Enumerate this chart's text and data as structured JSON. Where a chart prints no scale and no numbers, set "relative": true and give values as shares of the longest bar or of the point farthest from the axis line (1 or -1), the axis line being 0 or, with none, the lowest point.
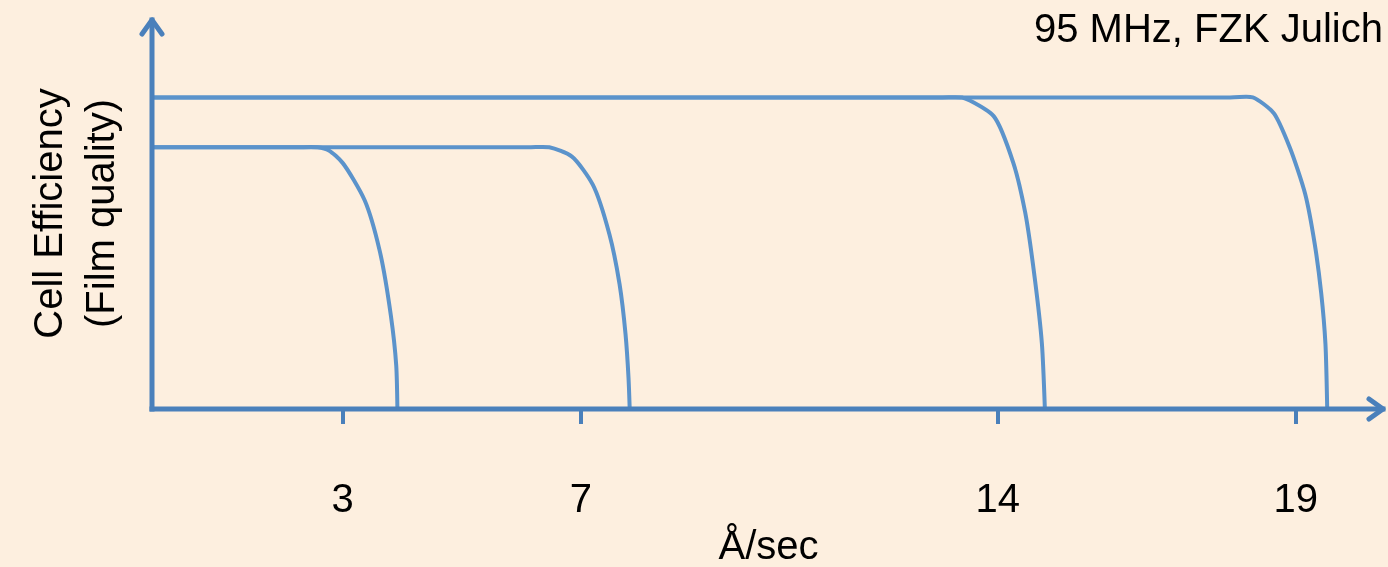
{
  "chart_data": {
    "type": "line",
    "relative": true,
    "xlabel": "Å/sec",
    "ylabel": "Cell Efficiency\n(Film quality)",
    "annotations": [
      "95 MHz, FZK Julich"
    ],
    "xlim": [
      -0.2,
      20.5
    ],
    "xticks": [
      3,
      7,
      14,
      19
    ],
    "series": [
      {
        "color": "#5b93cb",
        "x": [
          -0.2,
          2.2,
          2.58,
          2.77,
          3.0,
          3.37,
          3.62,
          3.81,
          3.9,
          3.92
        ],
        "values": [
          0.84,
          0.84,
          0.84,
          0.83,
          0.79,
          0.67,
          0.51,
          0.3,
          0.14,
          0
        ]
      },
      {
        "color": "#5b93cb",
        "x": [
          -0.2,
          6.1,
          6.47,
          6.85,
          7.2,
          7.48,
          7.65,
          7.75,
          7.8,
          7.82
        ],
        "values": [
          0.84,
          0.84,
          0.84,
          0.81,
          0.72,
          0.56,
          0.4,
          0.24,
          0.1,
          0
        ]
      },
      {
        "color": "#5b93cb",
        "x": [
          -0.2,
          13.0,
          13.4,
          13.53,
          13.93,
          14.26,
          14.46,
          14.62,
          14.74,
          14.79
        ],
        "values": [
          1,
          1,
          1,
          0.99,
          0.94,
          0.79,
          0.63,
          0.42,
          0.21,
          0
        ]
      },
      {
        "color": "#5b93cb",
        "x": [
          -0.2,
          17.9,
          18.28,
          18.63,
          18.9,
          19.16,
          19.32,
          19.43,
          19.5,
          19.53
        ],
        "values": [
          1,
          1,
          1,
          0.95,
          0.84,
          0.69,
          0.53,
          0.37,
          0.21,
          0
        ]
      }
    ]
  }
}
